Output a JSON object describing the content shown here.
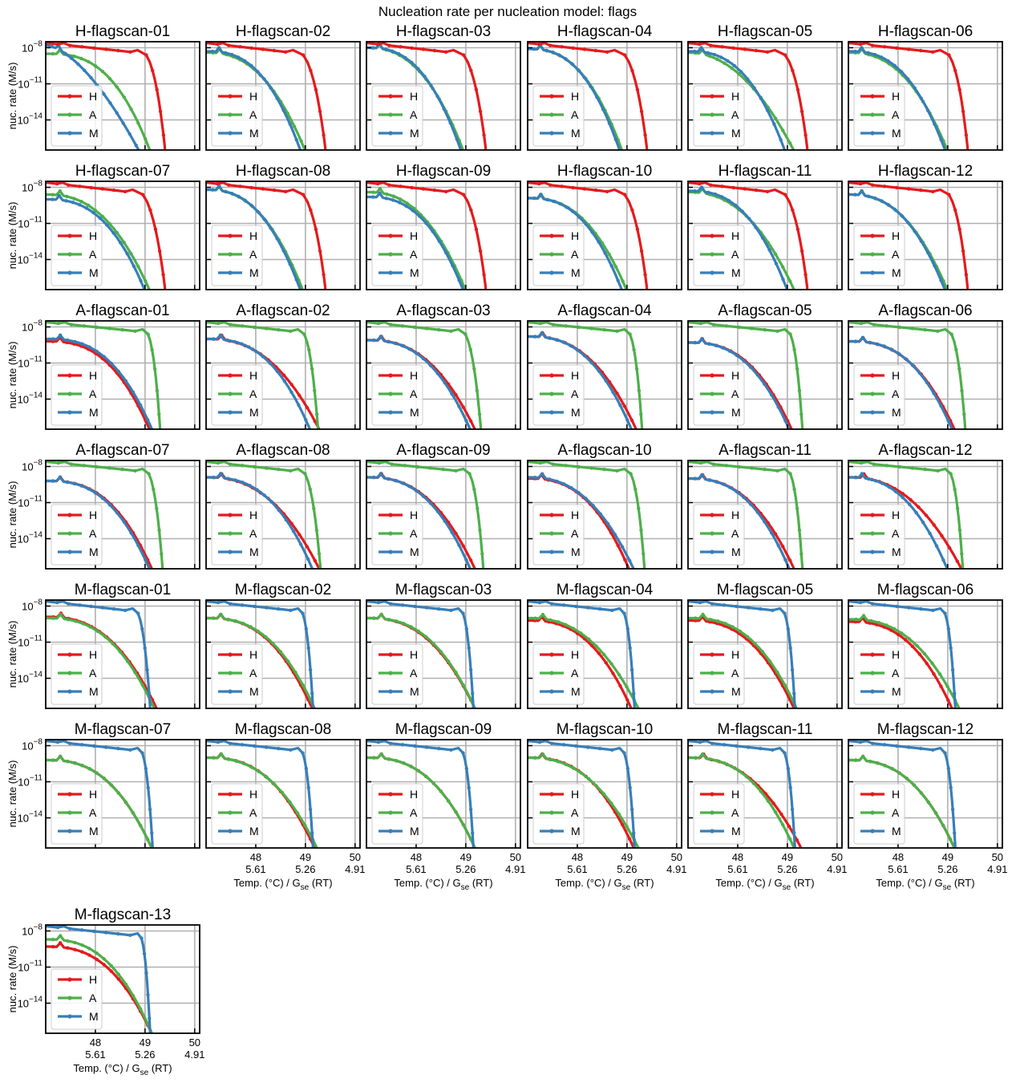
{
  "chart_data": {
    "type": "line",
    "title": "Nucleation rate per nucleation model: flags",
    "ylabel": "nuc. rate (M/s)",
    "xlabel": "Temp. (°C) / G_se (RT)",
    "yscale": "log",
    "ylim_exp": [
      -16.5,
      -7.5
    ],
    "ytick_exps": [
      -8,
      -11,
      -14
    ],
    "xlim": [
      47.0,
      50.1
    ],
    "xticks": [
      {
        "temp": "48",
        "gse": "5.61"
      },
      {
        "temp": "49",
        "gse": "5.26"
      },
      {
        "temp": "50",
        "gse": "4.91"
      }
    ],
    "grid": true,
    "legend_position": "lower-left",
    "legend": [
      {
        "key": "H",
        "color": "#e41a1c"
      },
      {
        "key": "A",
        "color": "#4daf4a"
      },
      {
        "key": "M",
        "color": "#377eb8"
      }
    ],
    "panels": [
      {
        "title": "H-flagscan-01",
        "flag": "H",
        "tf": 48.7,
        "drop": 49.4,
        "others": [
          {
            "s": "A",
            "start": -8.5,
            "end": 49.15,
            "shape": 1.0
          },
          {
            "s": "M",
            "start": -7.8,
            "end": 48.95,
            "shape": 0.35
          }
        ]
      },
      {
        "title": "H-flagscan-02",
        "flag": "H",
        "tf": 48.6,
        "drop": 49.4,
        "others": [
          {
            "s": "A",
            "start": -8.4,
            "end": 49.05,
            "shape": 0.8
          },
          {
            "s": "M",
            "start": -8.3,
            "end": 48.95,
            "shape": 0.9
          }
        ]
      },
      {
        "title": "H-flagscan-03",
        "flag": "H",
        "tf": 48.6,
        "drop": 49.4,
        "others": [
          {
            "s": "A",
            "start": -8.0,
            "end": 49.0,
            "shape": 0.8
          },
          {
            "s": "M",
            "start": -8.0,
            "end": 48.95,
            "shape": 0.9
          }
        ]
      },
      {
        "title": "H-flagscan-04",
        "flag": "H",
        "tf": 48.6,
        "drop": 49.4,
        "others": [
          {
            "s": "A",
            "start": -8.1,
            "end": 48.95,
            "shape": 0.85
          },
          {
            "s": "M",
            "start": -8.1,
            "end": 48.9,
            "shape": 0.9
          }
        ]
      },
      {
        "title": "H-flagscan-05",
        "flag": "H",
        "tf": 48.6,
        "drop": 49.4,
        "others": [
          {
            "s": "A",
            "start": -8.4,
            "end": 49.2,
            "shape": 0.6
          },
          {
            "s": "M",
            "start": -8.3,
            "end": 49.0,
            "shape": 0.9
          }
        ]
      },
      {
        "title": "H-flagscan-06",
        "flag": "H",
        "tf": 48.7,
        "drop": 49.4,
        "others": [
          {
            "s": "A",
            "start": -8.4,
            "end": 49.05,
            "shape": 0.8
          },
          {
            "s": "M",
            "start": -8.3,
            "end": 49.0,
            "shape": 0.9
          }
        ]
      },
      {
        "title": "H-flagscan-07",
        "flag": "H",
        "tf": 48.6,
        "drop": 49.4,
        "others": [
          {
            "s": "A",
            "start": -8.6,
            "end": 49.15,
            "shape": 0.8
          },
          {
            "s": "M",
            "start": -9.0,
            "end": 49.05,
            "shape": 0.9
          }
        ]
      },
      {
        "title": "H-flagscan-08",
        "flag": "H",
        "tf": 48.6,
        "drop": 49.4,
        "others": [
          {
            "s": "A",
            "start": -8.2,
            "end": 49.0,
            "shape": 0.8
          },
          {
            "s": "M",
            "start": -8.2,
            "end": 48.95,
            "shape": 0.85
          }
        ]
      },
      {
        "title": "H-flagscan-09",
        "flag": "H",
        "tf": 48.6,
        "drop": 49.4,
        "others": [
          {
            "s": "A",
            "start": -8.4,
            "end": 49.05,
            "shape": 0.8
          },
          {
            "s": "M",
            "start": -8.8,
            "end": 49.0,
            "shape": 0.9
          }
        ]
      },
      {
        "title": "H-flagscan-10",
        "flag": "H",
        "tf": 48.6,
        "drop": 49.4,
        "others": [
          {
            "s": "A",
            "start": -8.9,
            "end": 49.05,
            "shape": 0.85
          },
          {
            "s": "M",
            "start": -8.9,
            "end": 48.95,
            "shape": 0.9
          }
        ]
      },
      {
        "title": "H-flagscan-11",
        "flag": "H",
        "tf": 48.6,
        "drop": 49.4,
        "others": [
          {
            "s": "A",
            "start": -8.4,
            "end": 49.2,
            "shape": 0.75
          },
          {
            "s": "M",
            "start": -8.3,
            "end": 49.05,
            "shape": 0.9
          }
        ]
      },
      {
        "title": "H-flagscan-12",
        "flag": "H",
        "tf": 48.7,
        "drop": 49.4,
        "others": [
          {
            "s": "A",
            "start": -8.6,
            "end": 49.05,
            "shape": 0.8
          },
          {
            "s": "M",
            "start": -8.6,
            "end": 49.0,
            "shape": 0.85
          }
        ]
      },
      {
        "title": "A-flagscan-01",
        "flag": "A",
        "tf": 48.8,
        "drop": 49.3,
        "others": [
          {
            "s": "H",
            "start": -9.2,
            "end": 49.15,
            "shape": 0.95
          },
          {
            "s": "M",
            "start": -9.0,
            "end": 49.2,
            "shape": 0.95
          }
        ]
      },
      {
        "title": "A-flagscan-02",
        "flag": "A",
        "tf": 48.7,
        "drop": 49.25,
        "others": [
          {
            "s": "H",
            "start": -9.0,
            "end": 49.35,
            "shape": 0.8
          },
          {
            "s": "M",
            "start": -9.0,
            "end": 49.15,
            "shape": 0.95
          }
        ]
      },
      {
        "title": "A-flagscan-03",
        "flag": "A",
        "tf": 48.7,
        "drop": 49.3,
        "others": [
          {
            "s": "H",
            "start": -9.1,
            "end": 49.25,
            "shape": 0.85
          },
          {
            "s": "M",
            "start": -9.1,
            "end": 49.15,
            "shape": 0.9
          }
        ]
      },
      {
        "title": "A-flagscan-04",
        "flag": "A",
        "tf": 48.8,
        "drop": 49.3,
        "others": [
          {
            "s": "H",
            "start": -8.8,
            "end": 49.25,
            "shape": 0.85
          },
          {
            "s": "M",
            "start": -8.8,
            "end": 49.15,
            "shape": 0.9
          }
        ]
      },
      {
        "title": "A-flagscan-05",
        "flag": "A",
        "tf": 48.8,
        "drop": 49.3,
        "others": [
          {
            "s": "H",
            "start": -9.3,
            "end": 49.15,
            "shape": 0.9
          },
          {
            "s": "M",
            "start": -9.3,
            "end": 49.1,
            "shape": 0.9
          }
        ]
      },
      {
        "title": "A-flagscan-06",
        "flag": "A",
        "tf": 48.8,
        "drop": 49.35,
        "others": [
          {
            "s": "H",
            "start": -9.2,
            "end": 49.2,
            "shape": 0.9
          },
          {
            "s": "M",
            "start": -9.2,
            "end": 49.15,
            "shape": 0.95
          }
        ]
      },
      {
        "title": "A-flagscan-07",
        "flag": "A",
        "tf": 48.8,
        "drop": 49.35,
        "others": [
          {
            "s": "H",
            "start": -9.2,
            "end": 49.2,
            "shape": 0.95
          },
          {
            "s": "M",
            "start": -9.2,
            "end": 49.15,
            "shape": 0.95
          }
        ]
      },
      {
        "title": "A-flagscan-08",
        "flag": "A",
        "tf": 48.7,
        "drop": 49.3,
        "others": [
          {
            "s": "H",
            "start": -8.9,
            "end": 49.35,
            "shape": 0.8
          },
          {
            "s": "M",
            "start": -8.9,
            "end": 49.2,
            "shape": 0.95
          }
        ]
      },
      {
        "title": "A-flagscan-09",
        "flag": "A",
        "tf": 48.8,
        "drop": 49.35,
        "others": [
          {
            "s": "H",
            "start": -8.9,
            "end": 49.25,
            "shape": 0.85
          },
          {
            "s": "M",
            "start": -8.9,
            "end": 49.15,
            "shape": 0.9
          }
        ]
      },
      {
        "title": "A-flagscan-10",
        "flag": "A",
        "tf": 48.8,
        "drop": 49.35,
        "others": [
          {
            "s": "H",
            "start": -9.0,
            "end": 49.1,
            "shape": 0.9
          },
          {
            "s": "M",
            "start": -8.9,
            "end": 49.2,
            "shape": 0.8
          }
        ]
      },
      {
        "title": "A-flagscan-11",
        "flag": "A",
        "tf": 48.8,
        "drop": 49.3,
        "others": [
          {
            "s": "H",
            "start": -9.0,
            "end": 49.2,
            "shape": 0.85
          },
          {
            "s": "M",
            "start": -9.0,
            "end": 49.1,
            "shape": 0.9
          }
        ]
      },
      {
        "title": "A-flagscan-12",
        "flag": "A",
        "tf": 48.8,
        "drop": 49.3,
        "others": [
          {
            "s": "H",
            "start": -8.9,
            "end": 49.35,
            "shape": 0.75
          },
          {
            "s": "M",
            "start": -8.9,
            "end": 49.05,
            "shape": 0.85
          }
        ]
      },
      {
        "title": "M-flagscan-01",
        "flag": "M",
        "tf": 48.6,
        "drop": 49.1,
        "others": [
          {
            "s": "H",
            "start": -8.9,
            "end": 49.3,
            "shape": 0.85
          },
          {
            "s": "A",
            "start": -9.0,
            "end": 49.25,
            "shape": 0.9
          }
        ]
      },
      {
        "title": "M-flagscan-02",
        "flag": "M",
        "tf": 48.7,
        "drop": 49.15,
        "others": [
          {
            "s": "H",
            "start": -9.0,
            "end": 49.2,
            "shape": 0.9
          },
          {
            "s": "A",
            "start": -9.0,
            "end": 49.25,
            "shape": 0.9
          }
        ]
      },
      {
        "title": "M-flagscan-03",
        "flag": "M",
        "tf": 48.7,
        "drop": 49.15,
        "others": [
          {
            "s": "H",
            "start": -9.0,
            "end": 49.25,
            "shape": 0.85
          },
          {
            "s": "A",
            "start": -9.0,
            "end": 49.25,
            "shape": 0.9
          }
        ]
      },
      {
        "title": "M-flagscan-04",
        "flag": "M",
        "tf": 48.7,
        "drop": 49.15,
        "others": [
          {
            "s": "H",
            "start": -9.2,
            "end": 49.15,
            "shape": 0.9
          },
          {
            "s": "A",
            "start": -9.0,
            "end": 49.3,
            "shape": 0.8
          }
        ]
      },
      {
        "title": "M-flagscan-05",
        "flag": "M",
        "tf": 48.7,
        "drop": 49.15,
        "others": [
          {
            "s": "H",
            "start": -9.2,
            "end": 49.2,
            "shape": 0.9
          },
          {
            "s": "A",
            "start": -9.0,
            "end": 49.25,
            "shape": 0.9
          }
        ]
      },
      {
        "title": "M-flagscan-06",
        "flag": "M",
        "tf": 48.7,
        "drop": 49.15,
        "others": [
          {
            "s": "H",
            "start": -9.3,
            "end": 49.15,
            "shape": 0.9
          },
          {
            "s": "A",
            "start": -9.1,
            "end": 49.3,
            "shape": 0.85
          }
        ]
      },
      {
        "title": "M-flagscan-07",
        "flag": "M",
        "tf": 48.7,
        "drop": 49.15,
        "others": [
          {
            "s": "H",
            "start": -9.2,
            "end": 49.2,
            "shape": 0.9
          },
          {
            "s": "A",
            "start": -9.2,
            "end": 49.2,
            "shape": 0.9
          }
        ]
      },
      {
        "title": "M-flagscan-08",
        "flag": "M",
        "tf": 48.7,
        "drop": 49.15,
        "others": [
          {
            "s": "H",
            "start": -9.0,
            "end": 49.25,
            "shape": 0.9
          },
          {
            "s": "A",
            "start": -9.0,
            "end": 49.3,
            "shape": 0.85
          }
        ]
      },
      {
        "title": "M-flagscan-09",
        "flag": "M",
        "tf": 48.7,
        "drop": 49.15,
        "others": [
          {
            "s": "H",
            "start": -9.0,
            "end": 49.25,
            "shape": 0.9
          },
          {
            "s": "A",
            "start": -9.0,
            "end": 49.25,
            "shape": 0.9
          }
        ]
      },
      {
        "title": "M-flagscan-10",
        "flag": "M",
        "tf": 48.7,
        "drop": 49.15,
        "others": [
          {
            "s": "H",
            "start": -9.0,
            "end": 49.2,
            "shape": 0.9
          },
          {
            "s": "A",
            "start": -9.0,
            "end": 49.3,
            "shape": 0.8
          }
        ]
      },
      {
        "title": "M-flagscan-11",
        "flag": "M",
        "tf": 48.7,
        "drop": 49.15,
        "others": [
          {
            "s": "H",
            "start": -9.0,
            "end": 49.35,
            "shape": 0.8
          },
          {
            "s": "A",
            "start": -9.0,
            "end": 49.2,
            "shape": 0.9
          }
        ]
      },
      {
        "title": "M-flagscan-12",
        "flag": "M",
        "tf": 48.7,
        "drop": 49.15,
        "others": [
          {
            "s": "H",
            "start": -9.2,
            "end": 49.2,
            "shape": 0.9
          },
          {
            "s": "A",
            "start": -9.2,
            "end": 49.2,
            "shape": 0.9
          }
        ]
      },
      {
        "title": "M-flagscan-13",
        "flag": "M",
        "tf": 48.7,
        "drop": 49.1,
        "others": [
          {
            "s": "H",
            "start": -9.3,
            "end": 49.2,
            "shape": 0.9
          },
          {
            "s": "A",
            "start": -8.7,
            "end": 49.2,
            "shape": 0.9
          }
        ]
      }
    ]
  }
}
